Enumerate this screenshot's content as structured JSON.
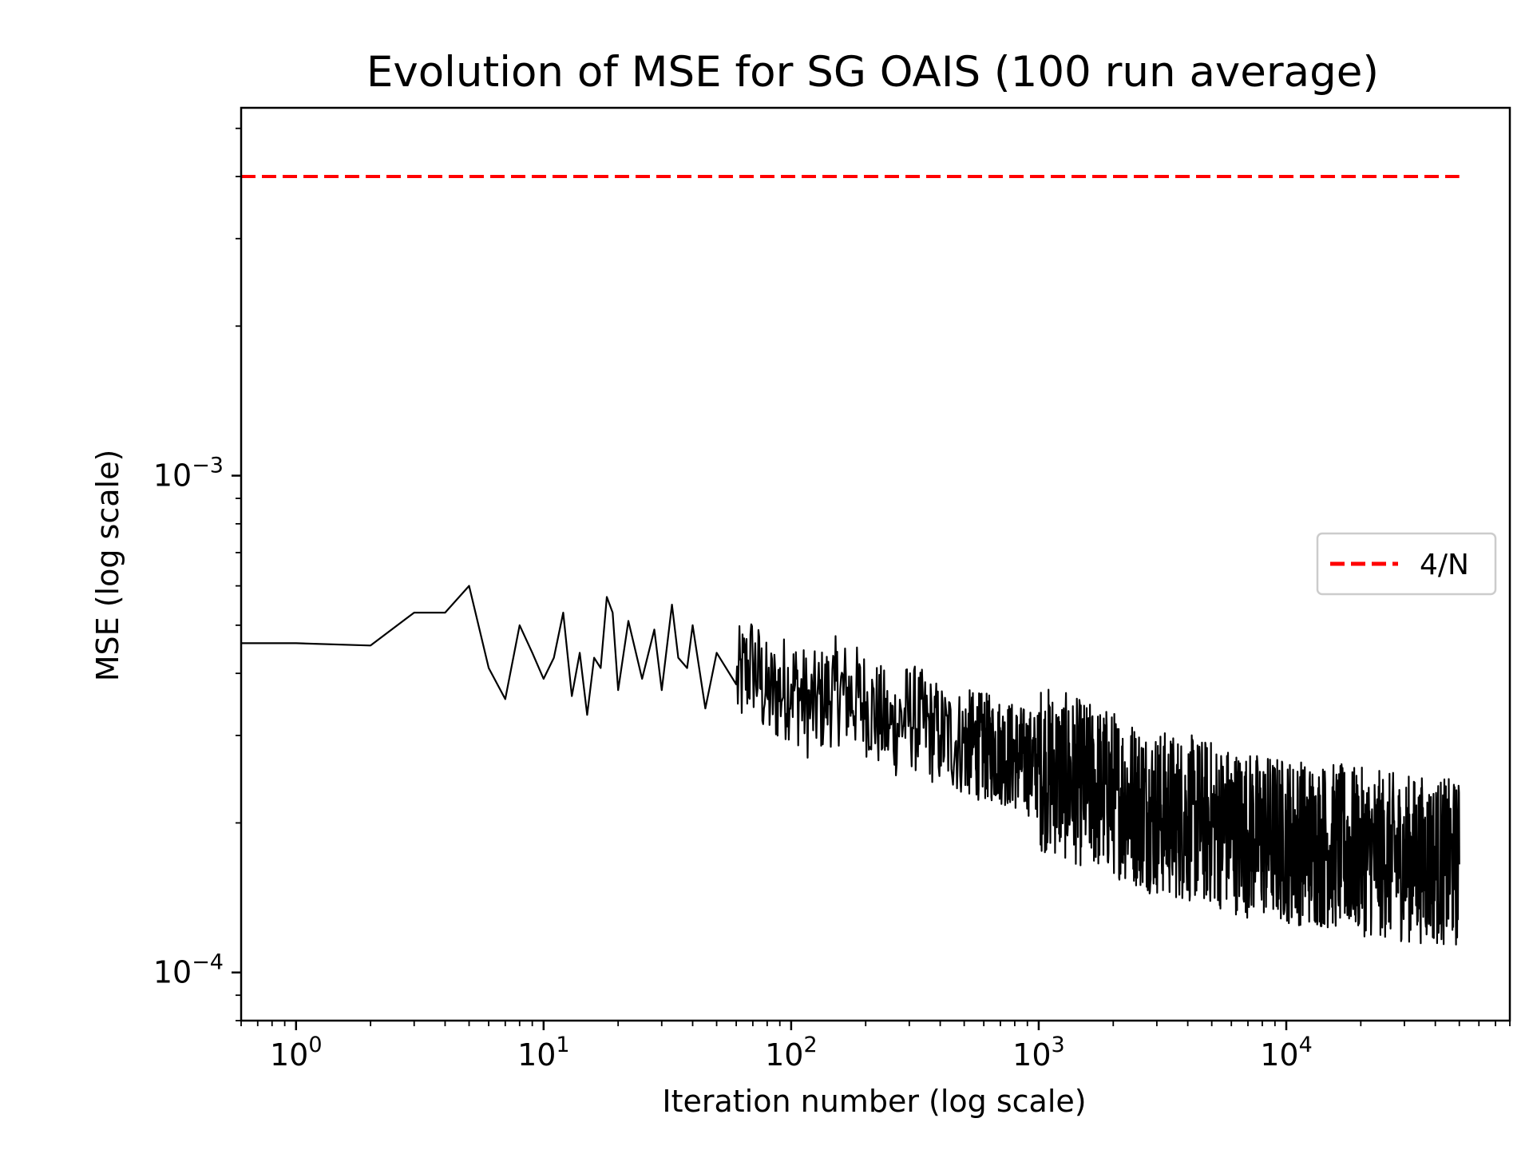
{
  "chart_data": {
    "type": "line",
    "title": "Evolution of MSE for SG OAIS (100 run average)",
    "xlabel": "Iteration number (log scale)",
    "ylabel": "MSE (log scale)",
    "xscale": "log",
    "yscale": "log",
    "xlim": [
      0.6,
      80000
    ],
    "ylim": [
      8e-05,
      0.0055
    ],
    "grid": false,
    "legend_position": "center-right",
    "x_ticks": [
      {
        "base": "10",
        "exp": "0"
      },
      {
        "base": "10",
        "exp": "1"
      },
      {
        "base": "10",
        "exp": "2"
      },
      {
        "base": "10",
        "exp": "3"
      },
      {
        "base": "10",
        "exp": "4"
      }
    ],
    "y_ticks": [
      {
        "base": "10",
        "exp": "−3"
      },
      {
        "base": "10",
        "exp": "−4"
      }
    ],
    "series": [
      {
        "name": "4/N",
        "style": "dashed",
        "color": "#ff0000",
        "x": [
          0.6,
          50000
        ],
        "values": [
          0.004,
          0.004
        ]
      },
      {
        "name": "",
        "style": "solid",
        "color": "#000000",
        "x": [
          0.6,
          1,
          2,
          3,
          4,
          5,
          6,
          7,
          8,
          9,
          10,
          11,
          12,
          13,
          14,
          15,
          16,
          17,
          18,
          19,
          20,
          22,
          25,
          28,
          30,
          33,
          35,
          38,
          40,
          45,
          50,
          60,
          70,
          80,
          100,
          120,
          150,
          200,
          250,
          300,
          400,
          500,
          700,
          1000,
          1500,
          2000,
          3000,
          5000,
          7000,
          10000,
          15000,
          20000,
          30000,
          40000,
          50000
        ],
        "values": [
          0.00046,
          0.00046,
          0.000455,
          0.00053,
          0.00053,
          0.0006,
          0.00041,
          0.000355,
          0.0005,
          0.00044,
          0.00039,
          0.00043,
          0.00053,
          0.00036,
          0.00044,
          0.00033,
          0.00043,
          0.00041,
          0.00057,
          0.00053,
          0.00037,
          0.00051,
          0.00039,
          0.00049,
          0.00037,
          0.00055,
          0.00043,
          0.00041,
          0.0005,
          0.00034,
          0.00044,
          0.00038,
          0.00042,
          0.00036,
          0.00038,
          0.00034,
          0.00037,
          0.00035,
          0.00031,
          0.00033,
          0.0003,
          0.00029,
          0.00028,
          0.00026,
          0.00024,
          0.00023,
          0.00021,
          0.0002,
          0.00019,
          0.000185,
          0.00018,
          0.000175,
          0.00017,
          0.000168,
          0.000165
        ]
      }
    ]
  }
}
